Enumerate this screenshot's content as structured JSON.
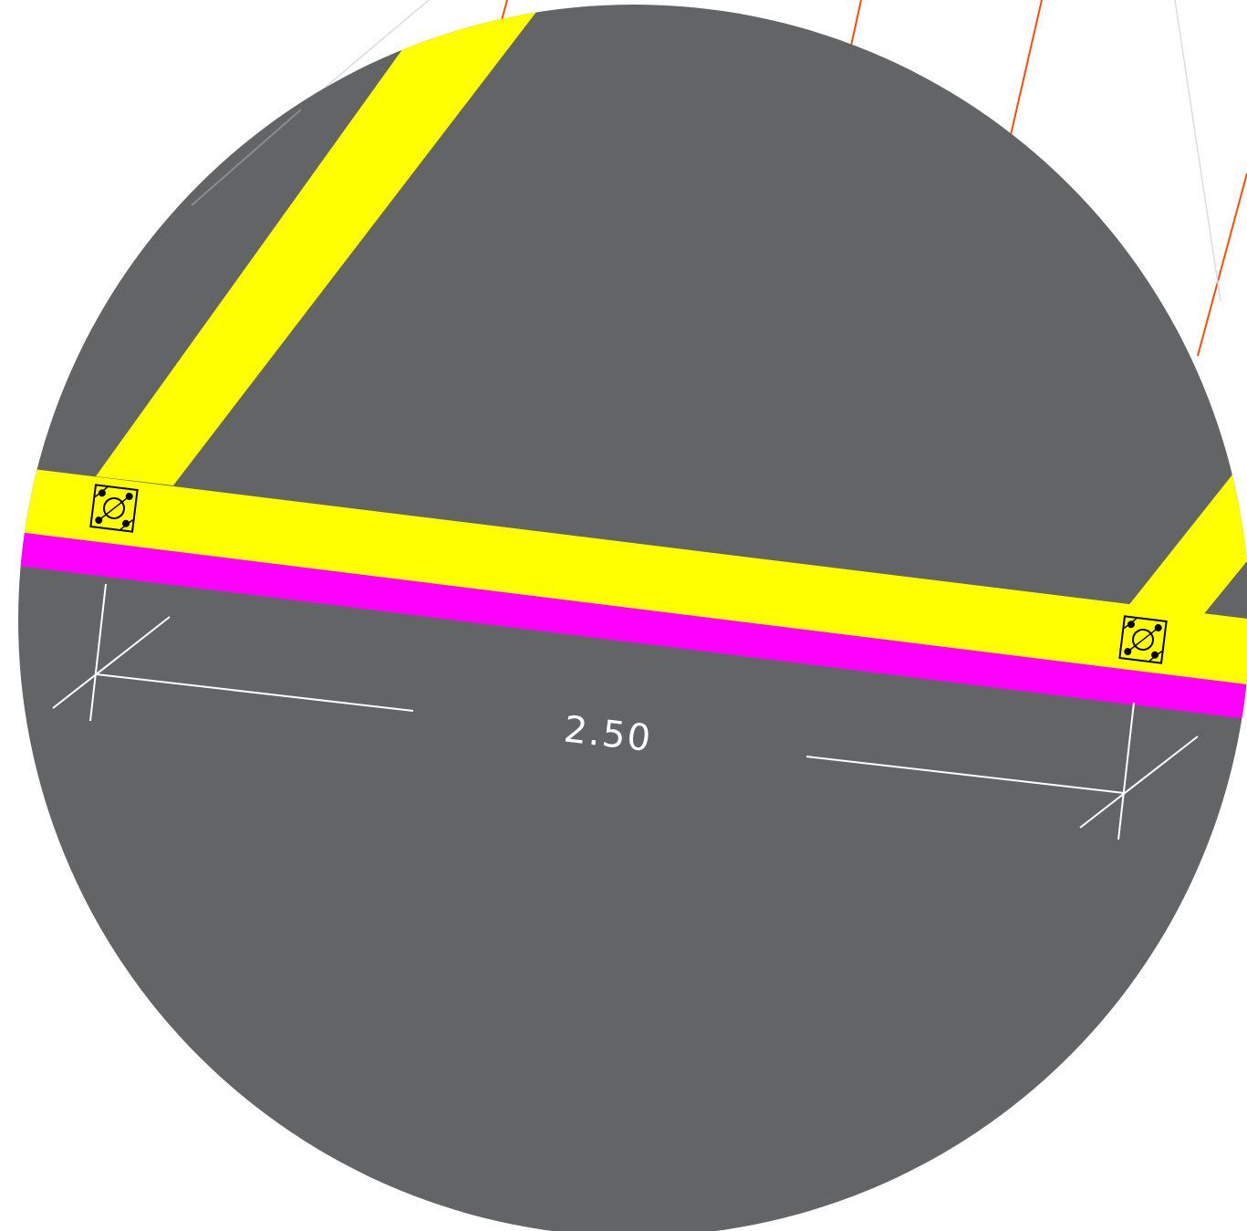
{
  "drawing": {
    "dimension_label": "2.50",
    "colors": {
      "background": "#ffffff",
      "detail_circle": "#636466",
      "beam": "#ffff00",
      "edge_band": "#ff00ff",
      "dimension_lines": "#ffffff",
      "hatch_lines": "#ff4d00",
      "column_symbol": "#000000"
    },
    "symbols": [
      "column-marker",
      "column-marker"
    ]
  }
}
